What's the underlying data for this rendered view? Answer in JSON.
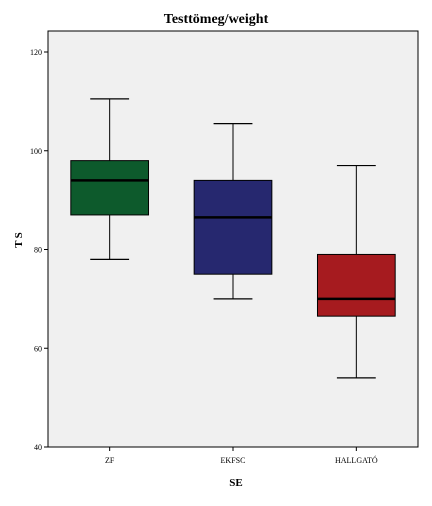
{
  "chart_data": {
    "type": "boxplot",
    "title": "Testtömeg/weight",
    "xlabel": "SE",
    "ylabel": "TS",
    "ylim": [
      40,
      120
    ],
    "yticks": [
      40,
      60,
      80,
      100,
      120
    ],
    "ytick_labels": [
      "40",
      "60",
      "80",
      "100",
      "120"
    ],
    "grid": false,
    "plot_background": "#f0f0f0",
    "categories": [
      "ZF",
      "EKFSC",
      "HALLGATÓ"
    ],
    "boxes": [
      {
        "category": "ZF",
        "whisker_low": 78,
        "q1": 87,
        "median": 94,
        "q3": 98,
        "whisker_high": 110.5,
        "color": "#0d5a2c"
      },
      {
        "category": "EKFSC",
        "whisker_low": 70,
        "q1": 75,
        "median": 86.5,
        "q3": 94,
        "whisker_high": 105.5,
        "color": "#26286f"
      },
      {
        "category": "HALLGATÓ",
        "whisker_low": 54,
        "q1": 66.5,
        "median": 70,
        "q3": 79,
        "whisker_high": 97,
        "color": "#a61b1f"
      }
    ]
  }
}
